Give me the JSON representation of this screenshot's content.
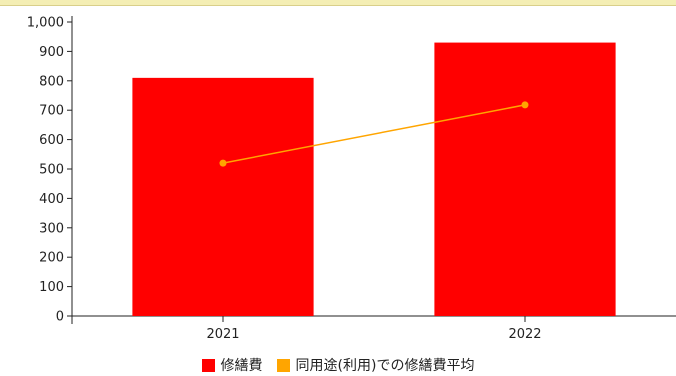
{
  "chart_data": {
    "type": "bar",
    "categories": [
      "2021",
      "2022"
    ],
    "series": [
      {
        "name": "修繕費",
        "type": "bar",
        "color": "#ff0000",
        "values": [
          810,
          930
        ]
      },
      {
        "name": "同用途(利用)での修繕費平均",
        "type": "line",
        "color": "#ffa500",
        "values": [
          520,
          718
        ]
      }
    ],
    "ylim": [
      0,
      1000
    ],
    "yticks": [
      "0",
      "100",
      "200",
      "300",
      "400",
      "500",
      "600",
      "700",
      "800",
      "900",
      "1,000"
    ],
    "grid": false,
    "legend": "bottom"
  }
}
